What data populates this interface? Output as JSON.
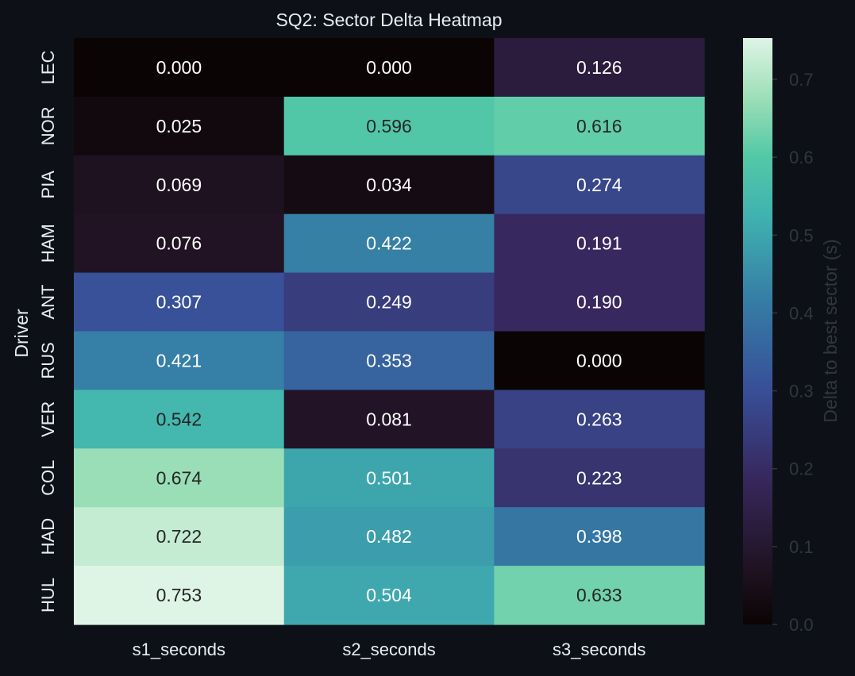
{
  "chart_data": {
    "type": "heatmap",
    "title": "SQ2: Sector Delta Heatmap",
    "ylabel": "Driver",
    "xlabel": "",
    "columns": [
      "s1_seconds",
      "s2_seconds",
      "s3_seconds"
    ],
    "rows": [
      "LEC",
      "NOR",
      "PIA",
      "HAM",
      "ANT",
      "RUS",
      "VER",
      "COL",
      "HAD",
      "HUL"
    ],
    "values": [
      [
        0.0,
        0.0,
        0.126
      ],
      [
        0.025,
        0.596,
        0.616
      ],
      [
        0.069,
        0.034,
        0.274
      ],
      [
        0.076,
        0.422,
        0.191
      ],
      [
        0.307,
        0.249,
        0.19
      ],
      [
        0.421,
        0.353,
        0.0
      ],
      [
        0.542,
        0.081,
        0.263
      ],
      [
        0.674,
        0.501,
        0.223
      ],
      [
        0.722,
        0.482,
        0.398
      ],
      [
        0.753,
        0.504,
        0.633
      ]
    ],
    "value_format": "0.000",
    "colorbar": {
      "label": "Delta to best sector (s)",
      "ticks": [
        0.0,
        0.1,
        0.2,
        0.3,
        0.4,
        0.5,
        0.6,
        0.7
      ],
      "tick_labels": [
        "0.0",
        "0.1",
        "0.2",
        "0.3",
        "0.4",
        "0.5",
        "0.6",
        "0.7"
      ],
      "vmin": 0.0,
      "vmax": 0.753
    },
    "colormap": "mako"
  },
  "colors": {
    "background": "#0d1117",
    "title": "#e6edf3",
    "axis_label": "#e6edf3",
    "tick_label": "#e6edf3",
    "colorbar_tick": "#30363d",
    "colorbar_label": "#30363d",
    "annotation_light": "#ffffff",
    "annotation_dark": "#262626"
  }
}
